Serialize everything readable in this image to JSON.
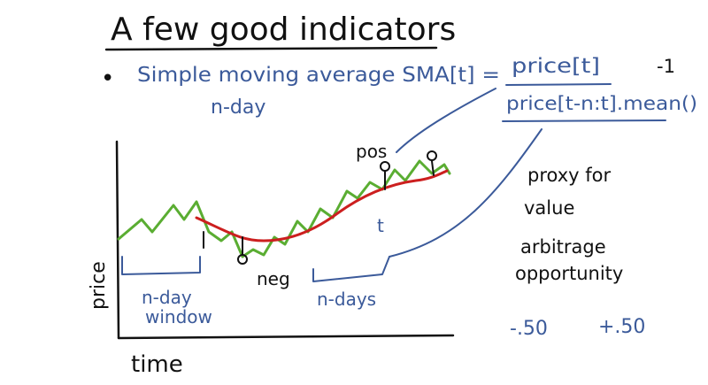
{
  "title": "A few good indicators",
  "bullet": "•",
  "definition": {
    "lhs": "Simple moving average SMA[t] =",
    "numerator": "price[t]",
    "minus_one": "-1",
    "denominator": "price[t-n:t].mean()",
    "sub_label": "n-day"
  },
  "plot_labels": {
    "y_axis": "price",
    "x_axis": "time",
    "window": [
      "n-day",
      "window"
    ],
    "n_days": "n-days",
    "pos": "pos",
    "neg": "neg",
    "t_mark": "t"
  },
  "notes": {
    "proxy": [
      "proxy for",
      "value"
    ],
    "arbitrage": [
      "arbitrage",
      "opportunity"
    ],
    "range_low": "-.50",
    "range_high": "+.50"
  },
  "colors": {
    "price_line": "#5aad32",
    "sma_line": "#cc1f1f",
    "ink_black": "#111111",
    "ink_blue": "#3b5a9a"
  }
}
